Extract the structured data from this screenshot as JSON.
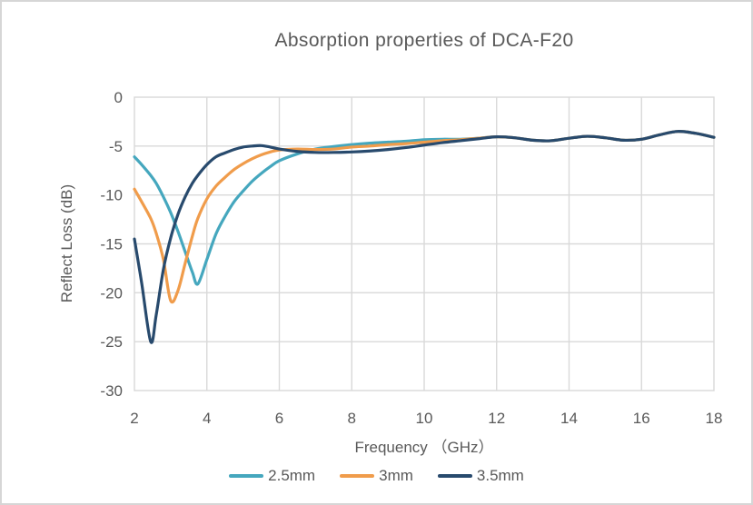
{
  "frame": {
    "background": "#FFFFFF",
    "border_color": "#D6D6D6"
  },
  "chart_data": {
    "type": "line",
    "title": "Absorption properties of DCA-F20",
    "xlabel": "Frequency （GHz）",
    "ylabel": "Reflect Loss (dB)",
    "xlim": [
      2,
      18
    ],
    "ylim": [
      -30,
      0
    ],
    "xticks": [
      2,
      4,
      6,
      8,
      10,
      12,
      14,
      16,
      18
    ],
    "yticks": [
      0,
      -5,
      -10,
      -15,
      -20,
      -25,
      -30
    ],
    "grid": true,
    "legend_position": "bottom-center",
    "text_color": "#595959",
    "grid_color": "#D9D9D9",
    "x": [
      2,
      2.2,
      2.45,
      2.6,
      2.8,
      3,
      3.2,
      3.4,
      3.6,
      3.75,
      4,
      4.25,
      4.5,
      4.75,
      5,
      5.25,
      5.5,
      5.75,
      6,
      6.5,
      7,
      7.5,
      8,
      8.5,
      9,
      9.5,
      10,
      10.5,
      11,
      11.5,
      12,
      12.5,
      13,
      13.5,
      14,
      14.5,
      15,
      15.5,
      16,
      16.5,
      17,
      17.5,
      18
    ],
    "series": [
      {
        "name": "2.5mm",
        "color": "#45A7BE",
        "values": [
          -6.1,
          -6.9,
          -8.0,
          -8.8,
          -10.2,
          -11.8,
          -13.7,
          -15.8,
          -17.9,
          -19.1,
          -16.6,
          -14.0,
          -12.2,
          -10.7,
          -9.6,
          -8.6,
          -7.8,
          -7.1,
          -6.5,
          -5.8,
          -5.3,
          -5.05,
          -4.85,
          -4.7,
          -4.6,
          -4.5,
          -4.35,
          -4.3,
          -4.3,
          -4.2,
          -4.05,
          -4.15,
          -4.4,
          -4.45,
          -4.2,
          -4.0,
          -4.15,
          -4.4,
          -4.3,
          -3.85,
          -3.5,
          -3.7,
          -4.1
        ]
      },
      {
        "name": "3mm",
        "color": "#F09C4B",
        "values": [
          -9.4,
          -10.7,
          -12.4,
          -13.9,
          -16.6,
          -20.8,
          -19.8,
          -17.0,
          -14.2,
          -12.4,
          -10.4,
          -9.1,
          -8.2,
          -7.4,
          -6.8,
          -6.3,
          -5.9,
          -5.6,
          -5.4,
          -5.3,
          -5.35,
          -5.3,
          -5.1,
          -5.0,
          -4.85,
          -4.75,
          -4.6,
          -4.45,
          -4.35,
          -4.2,
          -4.05,
          -4.15,
          -4.4,
          -4.45,
          -4.2,
          -4.0,
          -4.15,
          -4.4,
          -4.3,
          -3.85,
          -3.5,
          -3.7,
          -4.1
        ]
      },
      {
        "name": "3.5mm",
        "color": "#284A6D",
        "values": [
          -14.5,
          -19.0,
          -25.0,
          -22.3,
          -17.6,
          -14.4,
          -12.0,
          -10.2,
          -8.8,
          -8.0,
          -6.9,
          -6.1,
          -5.7,
          -5.35,
          -5.1,
          -5.0,
          -4.95,
          -5.1,
          -5.3,
          -5.55,
          -5.65,
          -5.65,
          -5.6,
          -5.5,
          -5.35,
          -5.15,
          -4.9,
          -4.65,
          -4.45,
          -4.25,
          -4.05,
          -4.15,
          -4.4,
          -4.45,
          -4.2,
          -4.0,
          -4.15,
          -4.4,
          -4.3,
          -3.85,
          -3.5,
          -3.7,
          -4.1
        ]
      }
    ]
  }
}
